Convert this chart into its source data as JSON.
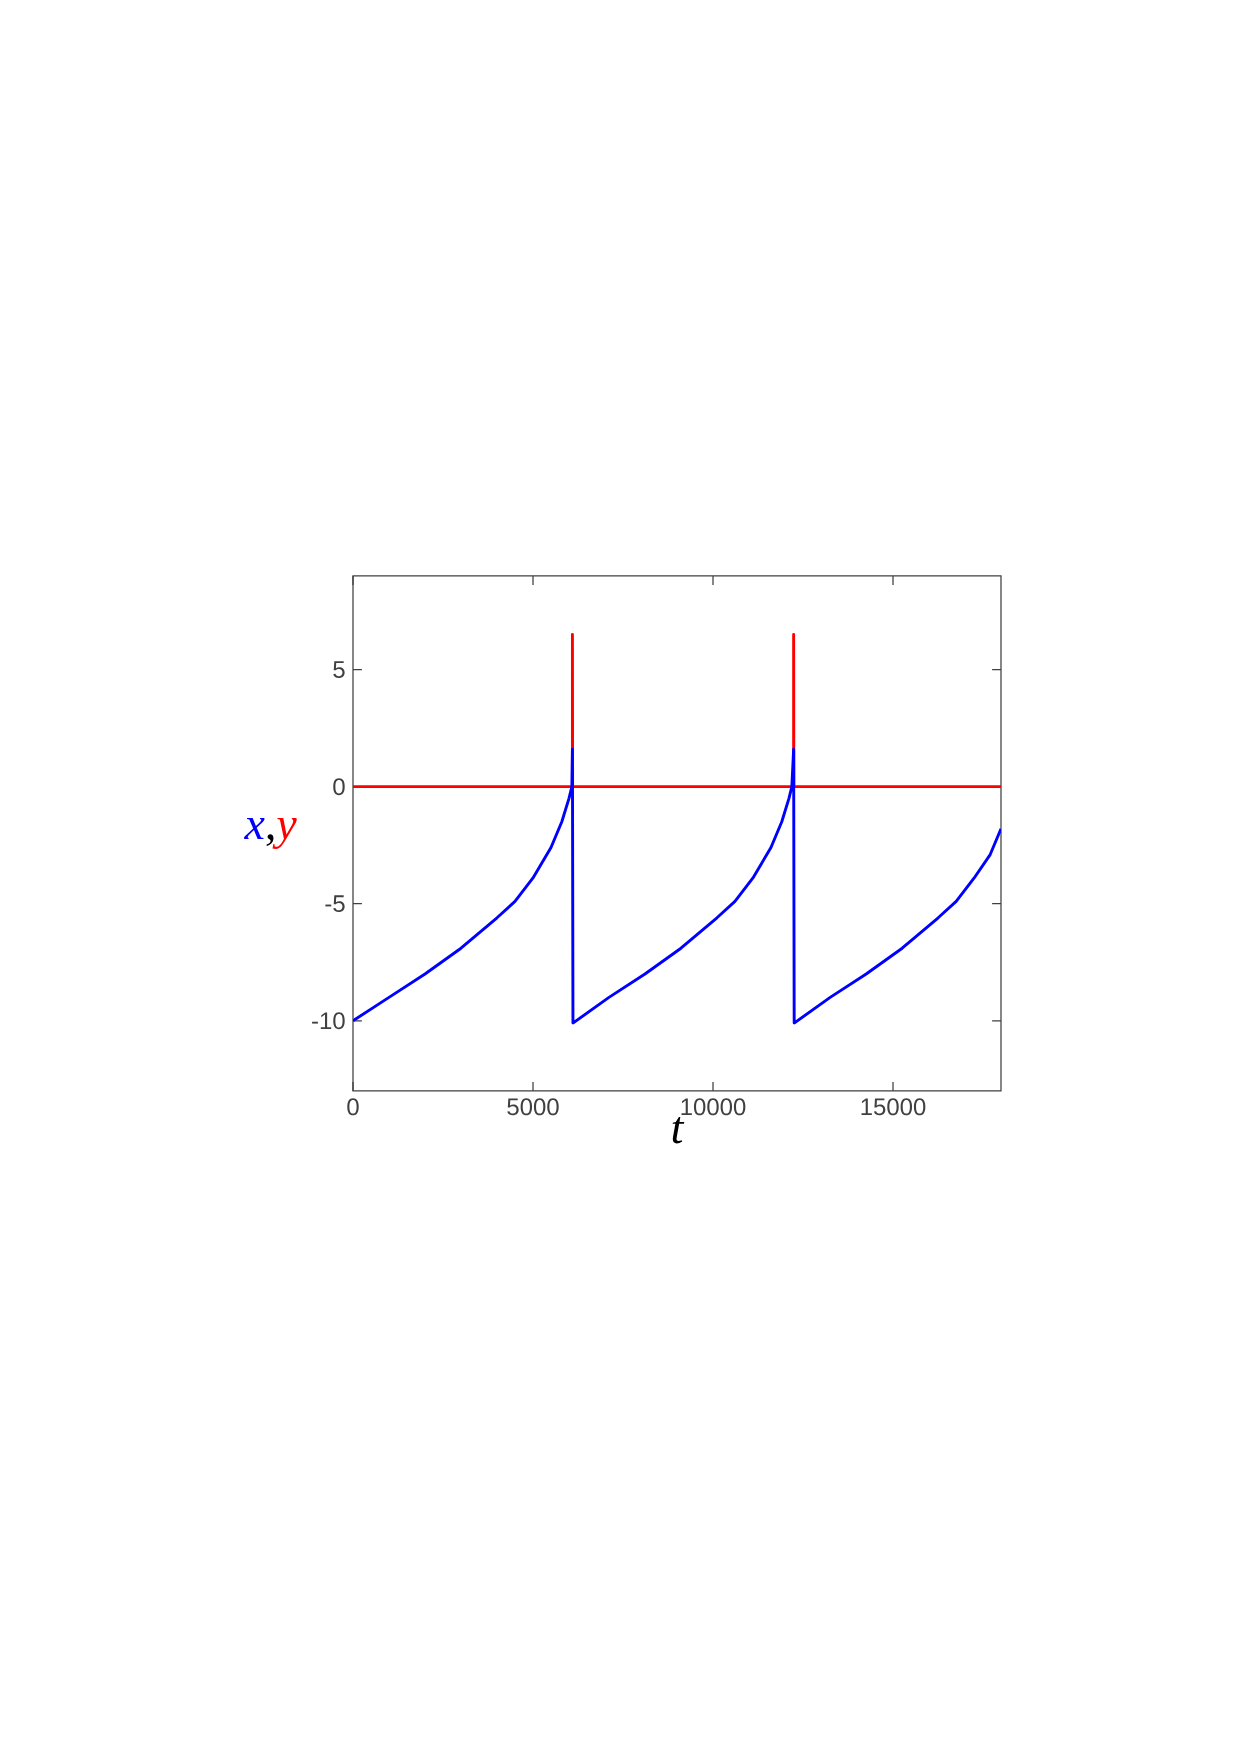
{
  "chart_data": {
    "type": "line",
    "xlabel": "t",
    "ylabel": ",",
    "xlim": [
      0,
      18000
    ],
    "ylim": [
      -13,
      9
    ],
    "xticks": [
      0,
      5000,
      10000,
      15000
    ],
    "yticks": [
      -10,
      -5,
      0,
      5
    ],
    "grid": false,
    "legend": false,
    "marker": "none",
    "line_style": "solid",
    "series": [
      {
        "name": "y",
        "color": "#ff0000",
        "x": [
          0,
          6090,
          6095,
          6095,
          6100,
          12235,
          12240,
          12240,
          12245,
          18000
        ],
        "values": [
          0,
          0,
          0,
          6.5,
          0,
          0,
          0,
          6.5,
          0,
          0
        ]
      },
      {
        "name": "x",
        "color": "#0000ff",
        "x": [
          0,
          1000,
          2000,
          3000,
          4000,
          4500,
          5000,
          5500,
          5800,
          6000,
          6080,
          6095,
          6110,
          7110,
          8110,
          9110,
          10110,
          10610,
          11110,
          11610,
          11910,
          12110,
          12190,
          12240,
          12255,
          13255,
          14255,
          15255,
          16255,
          16755,
          17255,
          17700,
          18000
        ],
        "values": [
          -10,
          -9.0,
          -8.0,
          -6.9,
          -5.6,
          -4.9,
          -3.9,
          -2.6,
          -1.5,
          -0.5,
          0,
          1.6,
          -10.1,
          -9.0,
          -8.0,
          -6.9,
          -5.6,
          -4.9,
          -3.9,
          -2.6,
          -1.5,
          -0.5,
          0,
          1.6,
          -10.1,
          -9.0,
          -8.0,
          -6.9,
          -5.6,
          -4.9,
          -3.9,
          -2.9,
          -1.8
        ]
      }
    ]
  }
}
